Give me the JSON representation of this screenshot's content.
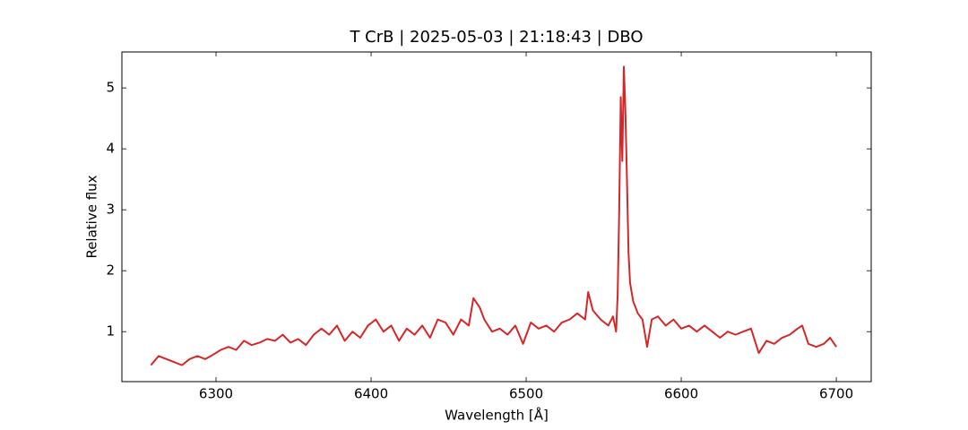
{
  "chart_data": {
    "type": "line",
    "title": "T CrB | 2025-05-03 | 21:18:43 | DBO",
    "xlabel": "Wavelength [Å]",
    "ylabel": "Relative flux",
    "xlim": [
      6239.3,
      6722.5
    ],
    "ylim": [
      0.18,
      5.59
    ],
    "xticks": [
      6300,
      6400,
      6500,
      6600,
      6700
    ],
    "yticks": [
      1,
      2,
      3,
      4,
      5
    ],
    "grid": false,
    "series": [
      {
        "color": "#d62728",
        "x": [
          6258,
          6263,
          6268,
          6273,
          6278,
          6283,
          6288,
          6293,
          6298,
          6303,
          6308,
          6313,
          6318,
          6323,
          6328,
          6333,
          6338,
          6343,
          6348,
          6353,
          6358,
          6363,
          6368,
          6373,
          6378,
          6383,
          6388,
          6393,
          6398,
          6403,
          6408,
          6413,
          6418,
          6423,
          6428,
          6433,
          6438,
          6443,
          6448,
          6453,
          6458,
          6463,
          6466,
          6470,
          6473,
          6478,
          6483,
          6488,
          6493,
          6498,
          6503,
          6508,
          6513,
          6518,
          6523,
          6528,
          6533,
          6538,
          6540,
          6543,
          6548,
          6553,
          6556,
          6558,
          6559,
          6560,
          6561,
          6562,
          6563,
          6564,
          6565,
          6566,
          6567,
          6569,
          6572,
          6575,
          6578,
          6581,
          6585,
          6590,
          6595,
          6600,
          6605,
          6610,
          6615,
          6620,
          6625,
          6630,
          6635,
          6640,
          6645,
          6650,
          6655,
          6660,
          6665,
          6670,
          6675,
          6678,
          6682,
          6687,
          6692,
          6696,
          6700
        ],
        "values": [
          0.45,
          0.6,
          0.55,
          0.5,
          0.45,
          0.55,
          0.6,
          0.55,
          0.62,
          0.7,
          0.75,
          0.7,
          0.85,
          0.78,
          0.82,
          0.88,
          0.85,
          0.95,
          0.82,
          0.88,
          0.78,
          0.95,
          1.05,
          0.95,
          1.1,
          0.85,
          1.0,
          0.9,
          1.1,
          1.2,
          1.0,
          1.1,
          0.85,
          1.05,
          0.95,
          1.1,
          0.9,
          1.2,
          1.15,
          0.95,
          1.2,
          1.1,
          1.55,
          1.4,
          1.2,
          1.0,
          1.05,
          0.95,
          1.1,
          0.8,
          1.15,
          1.05,
          1.1,
          1.0,
          1.15,
          1.2,
          1.3,
          1.2,
          1.65,
          1.35,
          1.2,
          1.1,
          1.25,
          1.0,
          1.6,
          3.0,
          4.85,
          3.8,
          5.35,
          4.6,
          3.5,
          2.3,
          1.8,
          1.5,
          1.3,
          1.2,
          0.75,
          1.2,
          1.25,
          1.1,
          1.2,
          1.05,
          1.1,
          1.0,
          1.1,
          1.0,
          0.9,
          1.0,
          0.95,
          1.0,
          1.05,
          0.65,
          0.85,
          0.8,
          0.9,
          0.95,
          1.05,
          1.1,
          0.8,
          0.75,
          0.8,
          0.9,
          0.75
        ]
      }
    ]
  }
}
